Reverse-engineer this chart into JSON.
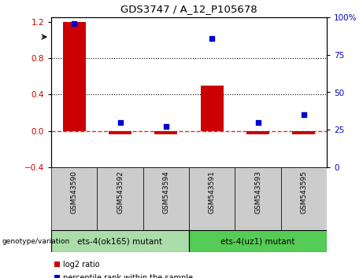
{
  "title": "GDS3747 / A_12_P105678",
  "samples": [
    "GSM543590",
    "GSM543592",
    "GSM543594",
    "GSM543591",
    "GSM543593",
    "GSM543595"
  ],
  "log2_ratio": [
    1.2,
    -0.04,
    -0.04,
    0.5,
    -0.04,
    -0.04
  ],
  "percentile_rank": [
    96,
    30,
    27,
    86,
    30,
    35
  ],
  "ylim_left": [
    -0.4,
    1.25
  ],
  "ylim_right": [
    0,
    100
  ],
  "yticks_left": [
    -0.4,
    0.0,
    0.4,
    0.8,
    1.2
  ],
  "yticks_right": [
    0,
    25,
    50,
    75,
    100
  ],
  "hlines_dotted": [
    0.4,
    0.8
  ],
  "hline_dashed": 0.0,
  "bar_color": "#cc0000",
  "scatter_color": "#0000cc",
  "dashed_line_color": "#cc0000",
  "group1_label": "ets-4(ok165) mutant",
  "group2_label": "ets-4(uz1) mutant",
  "group1_color": "#aaddaa",
  "group2_color": "#55cc55",
  "group1_indices": [
    0,
    1,
    2
  ],
  "group2_indices": [
    3,
    4,
    5
  ],
  "legend_log2": "log2 ratio",
  "legend_pct": "percentile rank within the sample",
  "genotype_label": "genotype/variation",
  "left_yaxis_color": "#cc0000",
  "right_yaxis_color": "#0000cc",
  "sample_bg_color": "#cccccc",
  "fig_width": 4.61,
  "fig_height": 3.54,
  "dpi": 100
}
